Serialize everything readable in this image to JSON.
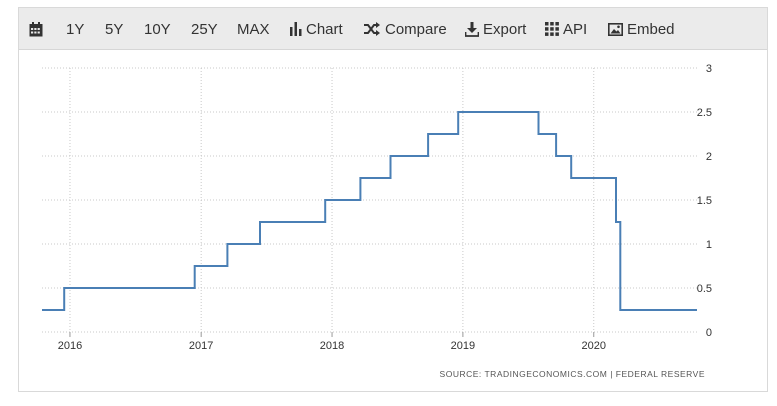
{
  "toolbar": {
    "items": [
      {
        "label": "",
        "icon": "calendar-icon"
      },
      {
        "label": "1Y"
      },
      {
        "label": "5Y"
      },
      {
        "label": "10Y"
      },
      {
        "label": "25Y"
      },
      {
        "label": "MAX"
      },
      {
        "label": "Chart",
        "icon": "bar-chart-icon"
      },
      {
        "label": "Compare",
        "icon": "shuffle-icon"
      },
      {
        "label": "Export",
        "icon": "download-icon"
      },
      {
        "label": "API",
        "icon": "grid-icon"
      },
      {
        "label": "Embed",
        "icon": "image-icon"
      }
    ]
  },
  "chart_data": {
    "type": "line",
    "title": "",
    "xlabel": "",
    "ylabel": "",
    "x_ticks": [
      "2016",
      "2017",
      "2018",
      "2019",
      "2020"
    ],
    "y_ticks": [
      "0",
      "0.5",
      "1",
      "1.5",
      "2",
      "2.5",
      "3"
    ],
    "ylim": [
      0,
      3
    ],
    "xlim": [
      "2015-10-15",
      "2020-10-15"
    ],
    "grid": true,
    "line_color": "#4a7fb5",
    "series": [
      {
        "points": [
          [
            "2015-10-15",
            0.25
          ],
          [
            "2015-12-16",
            0.25
          ],
          [
            "2015-12-16",
            0.5
          ],
          [
            "2016-12-14",
            0.5
          ],
          [
            "2016-12-14",
            0.75
          ],
          [
            "2017-03-15",
            0.75
          ],
          [
            "2017-03-15",
            1.0
          ],
          [
            "2017-06-14",
            1.0
          ],
          [
            "2017-06-14",
            1.25
          ],
          [
            "2017-12-13",
            1.25
          ],
          [
            "2017-12-13",
            1.5
          ],
          [
            "2018-03-21",
            1.5
          ],
          [
            "2018-03-21",
            1.75
          ],
          [
            "2018-06-13",
            1.75
          ],
          [
            "2018-06-13",
            2.0
          ],
          [
            "2018-09-26",
            2.0
          ],
          [
            "2018-09-26",
            2.25
          ],
          [
            "2018-12-19",
            2.25
          ],
          [
            "2018-12-19",
            2.5
          ],
          [
            "2019-07-31",
            2.5
          ],
          [
            "2019-07-31",
            2.25
          ],
          [
            "2019-09-18",
            2.25
          ],
          [
            "2019-09-18",
            2.0
          ],
          [
            "2019-10-30",
            2.0
          ],
          [
            "2019-10-30",
            1.75
          ],
          [
            "2020-03-03",
            1.75
          ],
          [
            "2020-03-03",
            1.25
          ],
          [
            "2020-03-15",
            1.25
          ],
          [
            "2020-03-15",
            0.25
          ],
          [
            "2020-10-15",
            0.25
          ]
        ]
      }
    ]
  },
  "source": "SOURCE: TRADINGECONOMICS.COM | FEDERAL RESERVE"
}
